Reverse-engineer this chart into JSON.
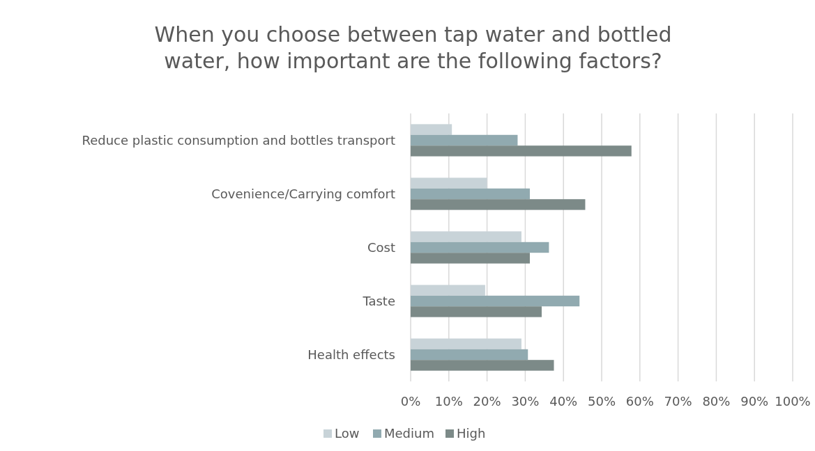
{
  "chart_data": {
    "type": "bar",
    "orientation": "horizontal",
    "title": "When you choose between tap water and bottled water, how important are the following factors?",
    "categories": [
      "Reduce plastic consumption and bottles transport",
      "Covenience/Carrying comfort",
      "Cost",
      "Taste",
      "Health effects"
    ],
    "series": [
      {
        "name": "Low",
        "color": "#c8d3d8",
        "values": [
          10.8,
          20,
          29,
          19.5,
          29
        ]
      },
      {
        "name": "Medium",
        "color": "#91aab0",
        "values": [
          28,
          31.2,
          36.2,
          44.2,
          30.7
        ]
      },
      {
        "name": "High",
        "color": "#7c8a88",
        "values": [
          57.8,
          45.7,
          31.2,
          34.3,
          37.5
        ]
      }
    ],
    "xlim": [
      0,
      100
    ],
    "xticks": [
      {
        "value": 0,
        "label": "0%"
      },
      {
        "value": 10,
        "label": "10%"
      },
      {
        "value": 20,
        "label": "20%"
      },
      {
        "value": 30,
        "label": "30%"
      },
      {
        "value": 40,
        "label": "40%"
      },
      {
        "value": 50,
        "label": "50%"
      },
      {
        "value": 60,
        "label": "60%"
      },
      {
        "value": 70,
        "label": "70%"
      },
      {
        "value": 80,
        "label": "80%"
      },
      {
        "value": 90,
        "label": "90%"
      },
      {
        "value": 100,
        "label": "100%"
      }
    ],
    "grid": "x",
    "legend": "bottom"
  }
}
